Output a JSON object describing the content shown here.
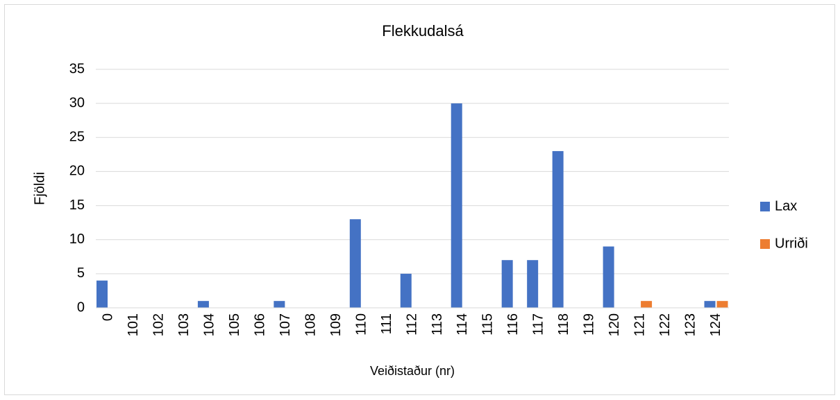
{
  "chart_data": {
    "type": "bar",
    "title": "Flekkudalsá",
    "xlabel": "Veiðistaður (nr)",
    "ylabel": "Fjöldi",
    "categories": [
      "0",
      "101",
      "102",
      "103",
      "104",
      "105",
      "106",
      "107",
      "108",
      "109",
      "110",
      "111",
      "112",
      "113",
      "114",
      "115",
      "116",
      "117",
      "118",
      "119",
      "120",
      "121",
      "122",
      "123",
      "124"
    ],
    "series": [
      {
        "name": "Lax",
        "color": "#4472c4",
        "values": [
          4,
          0,
          0,
          0,
          1,
          0,
          0,
          1,
          0,
          0,
          13,
          0,
          5,
          0,
          30,
          0,
          7,
          7,
          23,
          0,
          9,
          0,
          0,
          0,
          1
        ]
      },
      {
        "name": "Urriði",
        "color": "#ed7d31",
        "values": [
          0,
          0,
          0,
          0,
          0,
          0,
          0,
          0,
          0,
          0,
          0,
          0,
          0,
          0,
          0,
          0,
          0,
          0,
          0,
          0,
          0,
          1,
          0,
          0,
          1
        ]
      }
    ],
    "ylim": [
      0,
      35
    ],
    "yticks": [
      0,
      5,
      10,
      15,
      20,
      25,
      30,
      35
    ],
    "grid": true,
    "legend": "right"
  }
}
